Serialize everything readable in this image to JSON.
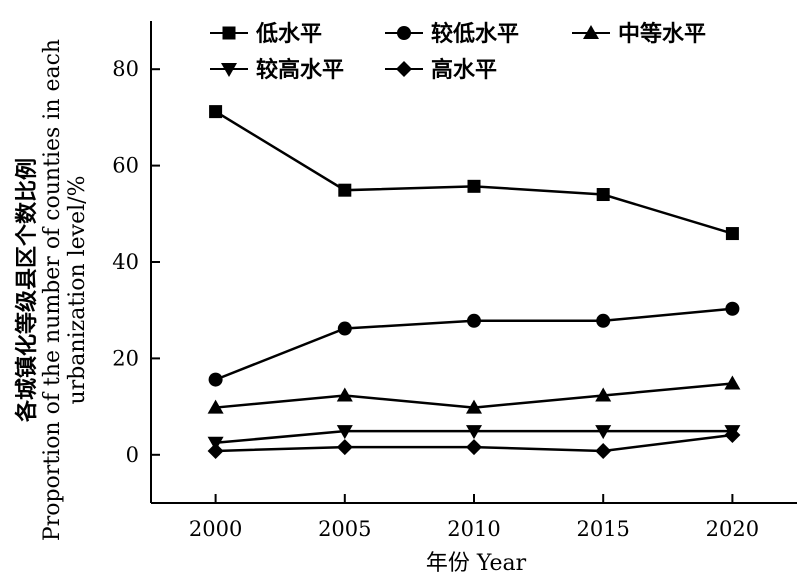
{
  "chart_data": {
    "type": "line",
    "x": [
      2000,
      2005,
      2010,
      2015,
      2020
    ],
    "series": [
      {
        "name": "低水平",
        "marker": "square",
        "values": [
          71.2,
          54.9,
          55.7,
          54.0,
          45.9
        ]
      },
      {
        "name": "较低水平",
        "marker": "circle",
        "values": [
          15.6,
          26.2,
          27.8,
          27.8,
          30.3
        ]
      },
      {
        "name": "中等水平",
        "marker": "triangle-up",
        "values": [
          9.8,
          12.3,
          9.8,
          12.3,
          14.8
        ]
      },
      {
        "name": "较高水平",
        "marker": "triangle-down",
        "values": [
          2.5,
          4.9,
          4.9,
          4.9,
          4.9
        ]
      },
      {
        "name": "高水平",
        "marker": "diamond",
        "values": [
          0.8,
          1.6,
          1.6,
          0.8,
          4.1
        ]
      }
    ],
    "xlim": [
      1997.5,
      2022.5
    ],
    "ylim": [
      -10,
      90
    ],
    "xticks": [
      "2000",
      "2005",
      "2010",
      "2015",
      "2020"
    ],
    "yticks": [
      "0",
      "20",
      "40",
      "60",
      "80"
    ],
    "xlabel": "年份 Year",
    "ylabel_cn": "各城镇化等级县区个数比例",
    "ylabel_en_line1": "Proportion of the number of counties in each",
    "ylabel_en_line2": "urbanization level/%",
    "grid": false,
    "legend_position": "top",
    "line_color": "#000000"
  }
}
